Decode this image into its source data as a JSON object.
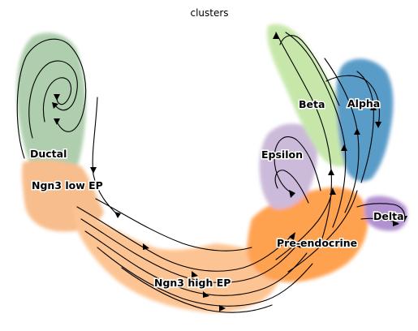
{
  "title": "clusters",
  "clusters": [
    {
      "id": "ductal",
      "label": "Ductal",
      "color": "#8fbc8f"
    },
    {
      "id": "ngn3-low-ep",
      "label": "Ngn3 low EP",
      "color": "#f4a460"
    },
    {
      "id": "ngn3-high-ep",
      "label": "Ngn3 high EP",
      "color": "#fdae6b"
    },
    {
      "id": "pre-endocrine",
      "label": "Pre-endocrine",
      "color": "#ff7f0e"
    },
    {
      "id": "beta",
      "label": "Beta",
      "color": "#b2df8a"
    },
    {
      "id": "alpha",
      "label": "Alpha",
      "color": "#1f77b4"
    },
    {
      "id": "delta",
      "label": "Delta",
      "color": "#9467bd"
    },
    {
      "id": "epsilon",
      "label": "Epsilon",
      "color": "#b9a0cc"
    }
  ]
}
